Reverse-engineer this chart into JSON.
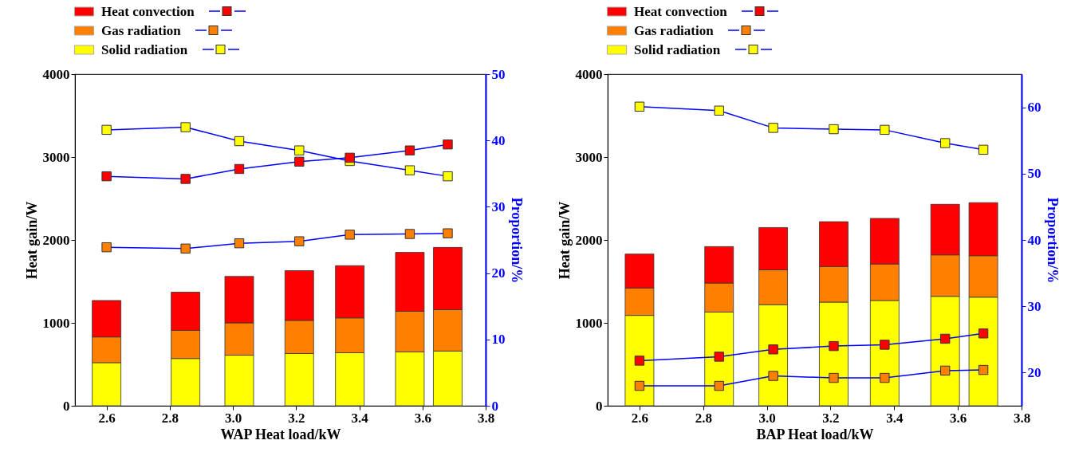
{
  "chart_data": [
    {
      "type": "bar",
      "stacked": true,
      "legend": "top left",
      "marker": "square",
      "line_style": "solid",
      "grid": false,
      "x": [
        2.6,
        2.85,
        3.02,
        3.21,
        3.37,
        3.56,
        3.68
      ],
      "xlim": [
        2.5,
        3.8
      ],
      "xticks": [
        2.6,
        2.8,
        {
          "value": 3,
          "label": "3.0"
        },
        3.2,
        3.4,
        3.6,
        3.8
      ],
      "ylim": [
        0,
        4000
      ],
      "yticks": [
        0,
        1000,
        2000,
        3000,
        4000
      ],
      "y2lim": [
        0,
        50
      ],
      "y2ticks": [
        0,
        10,
        20,
        30,
        40,
        50
      ],
      "xlabel": "WAP  Heat load/kW",
      "ylabel": "Heat gain/W",
      "y2label": "Proportion/%",
      "series": [
        {
          "name": "Solid radiation",
          "color": "#ffff00",
          "values": [
            520,
            570,
            610,
            630,
            640,
            650,
            660
          ]
        },
        {
          "name": "Gas radiation",
          "color": "#ff8000",
          "values": [
            310,
            340,
            390,
            400,
            420,
            490,
            500
          ]
        },
        {
          "name": "Heat convection",
          "color": "#ff0000",
          "values": [
            440,
            460,
            560,
            600,
            630,
            710,
            750
          ]
        },
        {
          "type": "line",
          "axis": "y2",
          "color": "#ff0000",
          "values": [
            34.6,
            34.2,
            35.7,
            36.8,
            37.4,
            38.5,
            39.4
          ]
        },
        {
          "type": "line",
          "axis": "y2",
          "color": "#ff8000",
          "values": [
            23.9,
            23.7,
            24.5,
            24.8,
            25.8,
            25.9,
            26.0
          ]
        },
        {
          "type": "line",
          "axis": "y2",
          "color": "#ffff00",
          "values": [
            41.6,
            42.0,
            39.9,
            38.5,
            36.9,
            35.5,
            34.6
          ]
        }
      ]
    },
    {
      "type": "bar",
      "stacked": true,
      "legend": "top left",
      "marker": "square",
      "line_style": "solid",
      "grid": false,
      "x": [
        2.6,
        2.85,
        3.02,
        3.21,
        3.37,
        3.56,
        3.68
      ],
      "xlim": [
        2.5,
        3.8
      ],
      "xticks": [
        2.6,
        2.8,
        {
          "value": 3,
          "label": "3.0"
        },
        3.2,
        3.4,
        3.6,
        3.8
      ],
      "ylim": [
        0,
        4000
      ],
      "yticks": [
        0,
        1000,
        2000,
        3000,
        4000
      ],
      "y2lim": [
        15,
        65
      ],
      "y2ticks": [
        20,
        30,
        40,
        50,
        60
      ],
      "xlabel": "BAP  Heat load/kW",
      "ylabel": "Heat gain/W",
      "y2label": "Proportion/%",
      "series": [
        {
          "name": "Solid radiation",
          "color": "#ffff00",
          "values": [
            1090,
            1130,
            1220,
            1250,
            1270,
            1320,
            1310
          ]
        },
        {
          "name": "Gas radiation",
          "color": "#ff8000",
          "values": [
            330,
            350,
            420,
            430,
            440,
            500,
            500
          ]
        },
        {
          "name": "Heat convection",
          "color": "#ff0000",
          "values": [
            410,
            440,
            510,
            540,
            550,
            610,
            640
          ]
        },
        {
          "type": "line",
          "axis": "y2",
          "color": "#ff0000",
          "values": [
            21.8,
            22.4,
            23.5,
            24.0,
            24.2,
            25.1,
            25.9
          ]
        },
        {
          "type": "line",
          "axis": "y2",
          "color": "#ff8000",
          "values": [
            18.0,
            18.0,
            19.5,
            19.2,
            19.2,
            20.3,
            20.4
          ]
        },
        {
          "type": "line",
          "axis": "y2",
          "color": "#ffff00",
          "values": [
            60.1,
            59.5,
            56.9,
            56.7,
            56.6,
            54.6,
            53.6
          ]
        }
      ]
    }
  ]
}
